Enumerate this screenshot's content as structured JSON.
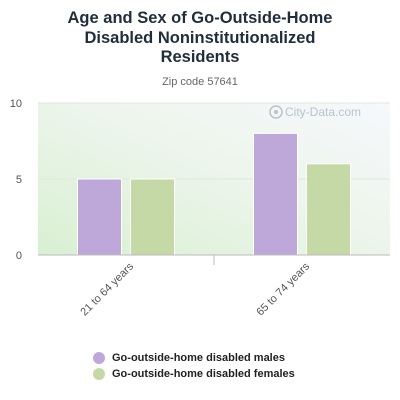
{
  "chart_data": {
    "type": "bar",
    "title": "Age and Sex of Go-Outside-Home\nDisabled Noninstitutionalized\nResidents",
    "subtitle": "Zip code 57641",
    "categories": [
      "21 to 64 years",
      "65 to 74 years"
    ],
    "series": [
      {
        "name": "Go-outside-home disabled males",
        "values": [
          5,
          8
        ],
        "color": "#bea8da"
      },
      {
        "name": "Go-outside-home disabled females",
        "values": [
          5,
          6
        ],
        "color": "#c5d9a6"
      }
    ],
    "ylim": [
      0,
      10
    ],
    "yticks": [
      0,
      5,
      10
    ],
    "grid": true,
    "legend": "bottom",
    "watermark": "City-Data.com"
  }
}
